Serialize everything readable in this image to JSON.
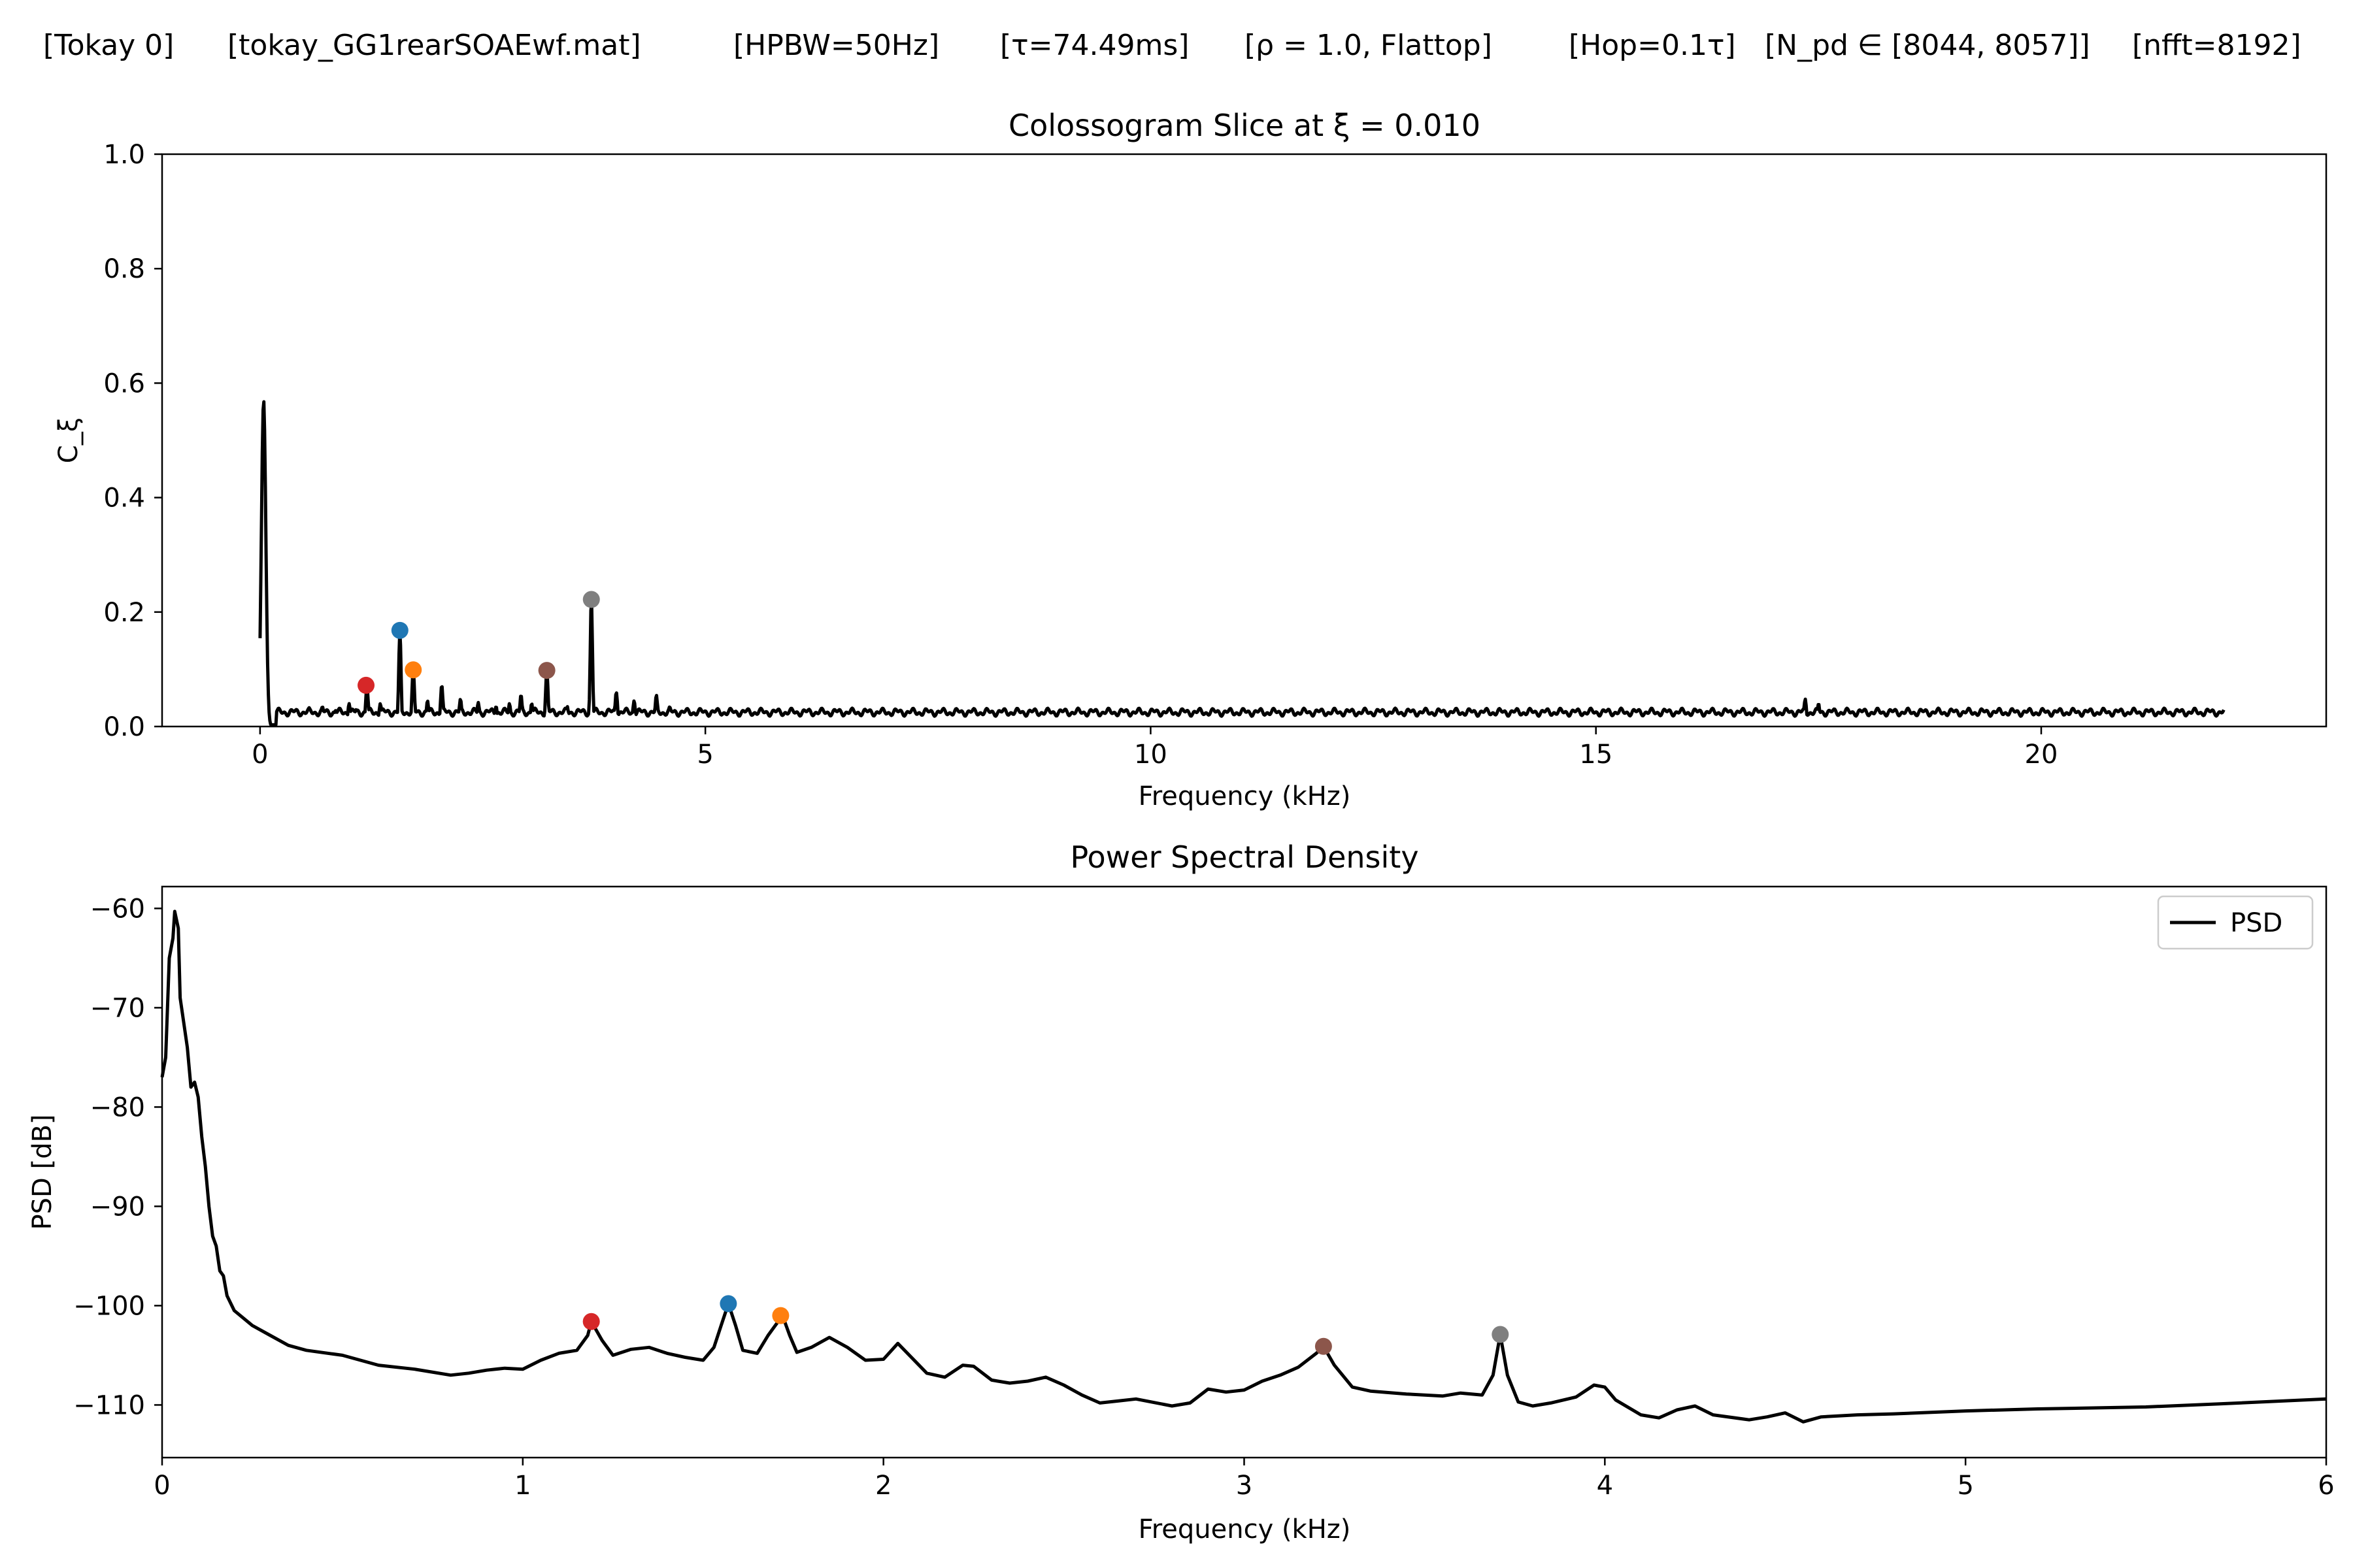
{
  "header": {
    "parts": [
      "[Tokay 0]",
      "[tokay_GG1rearSOAEwf.mat]",
      "[HPBW=50Hz]",
      "[τ=74.49ms]",
      "[ρ = 1.0, Flattop]",
      "[Hop=0.1τ]",
      "[N_pd ∈ [8044, 8057]]",
      "[nfft=8192]"
    ]
  },
  "chart_data": [
    {
      "type": "line",
      "title": "Colossogram Slice at ξ = 0.010",
      "xlabel": "Frequency (kHz)",
      "ylabel": "C_ξ",
      "xlim": [
        -1.1,
        23.2
      ],
      "ylim": [
        0.0,
        1.0
      ],
      "xticks": [
        0,
        5,
        10,
        15,
        20
      ],
      "yticks": [
        0.0,
        0.2,
        0.4,
        0.6,
        0.8,
        1.0
      ],
      "xtick_labels": [
        "0",
        "5",
        "10",
        "15",
        "20"
      ],
      "ytick_labels": [
        "0.0",
        "0.2",
        "0.4",
        "0.6",
        "0.8",
        "1.0"
      ],
      "baseline": 0.025,
      "x_max": 22.05,
      "series": [
        {
          "name": "Coherence",
          "color": "#000000",
          "peaks": [
            {
              "x": 0.04,
              "y": 0.57,
              "w": 0.035
            },
            {
              "x": 0.55,
              "y": 0.033,
              "w": 0.02
            },
            {
              "x": 0.7,
              "y": 0.035,
              "w": 0.02
            },
            {
              "x": 0.85,
              "y": 0.028,
              "w": 0.02
            },
            {
              "x": 1.0,
              "y": 0.04,
              "w": 0.02
            },
            {
              "x": 1.08,
              "y": 0.03,
              "w": 0.02
            },
            {
              "x": 1.2,
              "y": 0.072,
              "w": 0.02
            },
            {
              "x": 1.35,
              "y": 0.04,
              "w": 0.02
            },
            {
              "x": 1.57,
              "y": 0.168,
              "w": 0.018
            },
            {
              "x": 1.72,
              "y": 0.1,
              "w": 0.02
            },
            {
              "x": 1.88,
              "y": 0.045,
              "w": 0.02
            },
            {
              "x": 2.04,
              "y": 0.072,
              "w": 0.02
            },
            {
              "x": 2.25,
              "y": 0.048,
              "w": 0.02
            },
            {
              "x": 2.45,
              "y": 0.042,
              "w": 0.02
            },
            {
              "x": 2.65,
              "y": 0.035,
              "w": 0.02
            },
            {
              "x": 2.8,
              "y": 0.04,
              "w": 0.02
            },
            {
              "x": 2.93,
              "y": 0.055,
              "w": 0.02
            },
            {
              "x": 3.05,
              "y": 0.04,
              "w": 0.02
            },
            {
              "x": 3.22,
              "y": 0.098,
              "w": 0.02
            },
            {
              "x": 3.45,
              "y": 0.035,
              "w": 0.02
            },
            {
              "x": 3.72,
              "y": 0.222,
              "w": 0.018
            },
            {
              "x": 4.0,
              "y": 0.06,
              "w": 0.02
            },
            {
              "x": 4.2,
              "y": 0.045,
              "w": 0.02
            },
            {
              "x": 4.45,
              "y": 0.055,
              "w": 0.02
            },
            {
              "x": 4.6,
              "y": 0.035,
              "w": 0.02
            },
            {
              "x": 17.35,
              "y": 0.048,
              "w": 0.02
            },
            {
              "x": 17.5,
              "y": 0.04,
              "w": 0.02
            }
          ]
        }
      ],
      "markers": [
        {
          "x": 1.19,
          "y": 0.072,
          "color": "#d62728"
        },
        {
          "x": 1.57,
          "y": 0.168,
          "color": "#1f77b4"
        },
        {
          "x": 1.72,
          "y": 0.099,
          "color": "#ff7f0e"
        },
        {
          "x": 3.22,
          "y": 0.098,
          "color": "#8c564b"
        },
        {
          "x": 3.72,
          "y": 0.222,
          "color": "#7f7f7f"
        }
      ]
    },
    {
      "type": "line",
      "title": "Power Spectral Density",
      "xlabel": "Frequency (kHz)",
      "ylabel": "PSD [dB]",
      "xlim": [
        0,
        6
      ],
      "ylim": [
        -115.3,
        -57.8
      ],
      "xticks": [
        0,
        1,
        2,
        3,
        4,
        5,
        6
      ],
      "yticks": [
        -110,
        -100,
        -90,
        -80,
        -70,
        -60
      ],
      "xtick_labels": [
        "0",
        "1",
        "2",
        "3",
        "4",
        "5",
        "6"
      ],
      "ytick_labels": [
        "−110",
        "−100",
        "−90",
        "−80",
        "−70",
        "−60"
      ],
      "legend": {
        "position": "top-right",
        "entries": [
          "PSD"
        ]
      },
      "series": [
        {
          "name": "PSD",
          "color": "#000000",
          "points": [
            [
              0.0,
              -77
            ],
            [
              0.01,
              -75
            ],
            [
              0.02,
              -65
            ],
            [
              0.03,
              -63
            ],
            [
              0.035,
              -60.3
            ],
            [
              0.045,
              -62
            ],
            [
              0.05,
              -69
            ],
            [
              0.07,
              -74
            ],
            [
              0.08,
              -78
            ],
            [
              0.09,
              -77.5
            ],
            [
              0.1,
              -79
            ],
            [
              0.11,
              -83
            ],
            [
              0.12,
              -86
            ],
            [
              0.13,
              -90
            ],
            [
              0.14,
              -93
            ],
            [
              0.15,
              -94
            ],
            [
              0.16,
              -96.5
            ],
            [
              0.17,
              -97
            ],
            [
              0.18,
              -99
            ],
            [
              0.2,
              -100.5
            ],
            [
              0.25,
              -102
            ],
            [
              0.3,
              -103
            ],
            [
              0.35,
              -104
            ],
            [
              0.4,
              -104.5
            ],
            [
              0.5,
              -105
            ],
            [
              0.6,
              -106
            ],
            [
              0.7,
              -106.4
            ],
            [
              0.8,
              -107
            ],
            [
              0.85,
              -106.8
            ],
            [
              0.9,
              -106.5
            ],
            [
              0.95,
              -106.3
            ],
            [
              1.0,
              -106.4
            ],
            [
              1.05,
              -105.5
            ],
            [
              1.1,
              -104.8
            ],
            [
              1.15,
              -104.5
            ],
            [
              1.18,
              -103
            ],
            [
              1.19,
              -101.6
            ],
            [
              1.22,
              -103.5
            ],
            [
              1.25,
              -105
            ],
            [
              1.3,
              -104.4
            ],
            [
              1.35,
              -104.2
            ],
            [
              1.4,
              -104.8
            ],
            [
              1.45,
              -105.2
            ],
            [
              1.5,
              -105.5
            ],
            [
              1.53,
              -104.2
            ],
            [
              1.55,
              -102
            ],
            [
              1.57,
              -99.8
            ],
            [
              1.59,
              -102
            ],
            [
              1.61,
              -104.5
            ],
            [
              1.65,
              -104.8
            ],
            [
              1.68,
              -103
            ],
            [
              1.72,
              -101
            ],
            [
              1.74,
              -103
            ],
            [
              1.76,
              -104.7
            ],
            [
              1.8,
              -104.2
            ],
            [
              1.85,
              -103.2
            ],
            [
              1.9,
              -104.2
            ],
            [
              1.95,
              -105.5
            ],
            [
              2.0,
              -105.4
            ],
            [
              2.04,
              -103.8
            ],
            [
              2.08,
              -105.3
            ],
            [
              2.12,
              -106.8
            ],
            [
              2.17,
              -107.2
            ],
            [
              2.22,
              -106
            ],
            [
              2.25,
              -106.1
            ],
            [
              2.3,
              -107.5
            ],
            [
              2.35,
              -107.8
            ],
            [
              2.4,
              -107.6
            ],
            [
              2.45,
              -107.2
            ],
            [
              2.5,
              -108
            ],
            [
              2.55,
              -109
            ],
            [
              2.6,
              -109.8
            ],
            [
              2.65,
              -109.6
            ],
            [
              2.7,
              -109.4
            ],
            [
              2.8,
              -110.1
            ],
            [
              2.85,
              -109.8
            ],
            [
              2.9,
              -108.4
            ],
            [
              2.95,
              -108.7
            ],
            [
              3.0,
              -108.5
            ],
            [
              3.05,
              -107.6
            ],
            [
              3.1,
              -107
            ],
            [
              3.15,
              -106.2
            ],
            [
              3.2,
              -104.8
            ],
            [
              3.22,
              -104.1
            ],
            [
              3.25,
              -106
            ],
            [
              3.3,
              -108.2
            ],
            [
              3.35,
              -108.6
            ],
            [
              3.45,
              -108.9
            ],
            [
              3.55,
              -109.1
            ],
            [
              3.6,
              -108.8
            ],
            [
              3.66,
              -109
            ],
            [
              3.69,
              -107
            ],
            [
              3.71,
              -102.9
            ],
            [
              3.73,
              -107
            ],
            [
              3.76,
              -109.7
            ],
            [
              3.8,
              -110.1
            ],
            [
              3.85,
              -109.8
            ],
            [
              3.92,
              -109.2
            ],
            [
              3.97,
              -108
            ],
            [
              4.0,
              -108.2
            ],
            [
              4.03,
              -109.5
            ],
            [
              4.1,
              -111
            ],
            [
              4.15,
              -111.3
            ],
            [
              4.2,
              -110.5
            ],
            [
              4.25,
              -110.1
            ],
            [
              4.3,
              -111
            ],
            [
              4.4,
              -111.5
            ],
            [
              4.45,
              -111.2
            ],
            [
              4.5,
              -110.8
            ],
            [
              4.55,
              -111.7
            ],
            [
              4.6,
              -111.2
            ],
            [
              4.7,
              -111
            ],
            [
              4.8,
              -110.9
            ],
            [
              5.0,
              -110.6
            ],
            [
              5.2,
              -110.4
            ],
            [
              5.5,
              -110.2
            ],
            [
              5.7,
              -109.9
            ],
            [
              6.0,
              -109.4
            ]
          ]
        }
      ],
      "markers": [
        {
          "x": 1.19,
          "y": -101.6,
          "color": "#d62728"
        },
        {
          "x": 1.57,
          "y": -99.8,
          "color": "#1f77b4"
        },
        {
          "x": 1.715,
          "y": -101.0,
          "color": "#ff7f0e"
        },
        {
          "x": 3.22,
          "y": -104.1,
          "color": "#8c564b"
        },
        {
          "x": 3.71,
          "y": -102.9,
          "color": "#7f7f7f"
        }
      ]
    }
  ]
}
